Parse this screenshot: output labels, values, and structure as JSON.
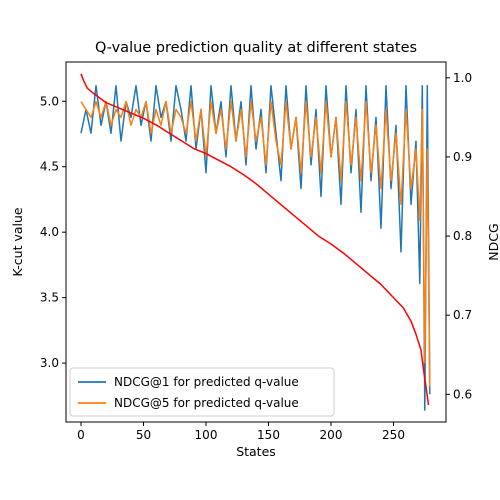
{
  "chart_data": {
    "type": "line",
    "title": "Q-value prediction quality at different states",
    "xlabel": "States",
    "ylabel_left": "K-cut value",
    "ylabel_right": "NDCG",
    "xlim": [
      -12,
      292
    ],
    "ylim_left": [
      2.55,
      5.3
    ],
    "ylim_right": [
      0.565,
      1.02
    ],
    "x_ticks": [
      0,
      50,
      100,
      150,
      200,
      250
    ],
    "y_left_ticks": [
      3.0,
      3.5,
      4.0,
      4.5,
      5.0
    ],
    "y_right_ticks": [
      0.6,
      0.7,
      0.8,
      0.9,
      1.0
    ],
    "grid": false,
    "legend_location": "lower-left",
    "n_states": 279,
    "series": [
      {
        "name": "NDCG@1 for predicted q-value",
        "color": "#1f77b4",
        "axis": "right",
        "points": [
          [
            0,
            0.93
          ],
          [
            4,
            0.96
          ],
          [
            8,
            0.93
          ],
          [
            12,
            0.99
          ],
          [
            16,
            0.94
          ],
          [
            20,
            0.97
          ],
          [
            24,
            0.93
          ],
          [
            28,
            0.99
          ],
          [
            32,
            0.92
          ],
          [
            36,
            0.97
          ],
          [
            40,
            0.95
          ],
          [
            44,
            0.99
          ],
          [
            48,
            0.94
          ],
          [
            52,
            0.97
          ],
          [
            56,
            0.92
          ],
          [
            60,
            0.99
          ],
          [
            64,
            0.95
          ],
          [
            68,
            0.97
          ],
          [
            72,
            0.92
          ],
          [
            76,
            0.99
          ],
          [
            80,
            0.96
          ],
          [
            84,
            0.92
          ],
          [
            88,
            0.99
          ],
          [
            92,
            0.91
          ],
          [
            96,
            0.96
          ],
          [
            100,
            0.88
          ],
          [
            104,
            0.99
          ],
          [
            108,
            0.93
          ],
          [
            112,
            0.97
          ],
          [
            116,
            0.9
          ],
          [
            120,
            0.99
          ],
          [
            124,
            0.92
          ],
          [
            128,
            0.97
          ],
          [
            132,
            0.89
          ],
          [
            136,
            0.99
          ],
          [
            140,
            0.91
          ],
          [
            144,
            0.96
          ],
          [
            148,
            0.88
          ],
          [
            152,
            0.99
          ],
          [
            156,
            0.93
          ],
          [
            160,
            0.87
          ],
          [
            164,
            0.99
          ],
          [
            168,
            0.91
          ],
          [
            172,
            0.95
          ],
          [
            176,
            0.86
          ],
          [
            180,
            0.99
          ],
          [
            184,
            0.89
          ],
          [
            188,
            0.96
          ],
          [
            192,
            0.85
          ],
          [
            196,
            0.99
          ],
          [
            200,
            0.9
          ],
          [
            204,
            0.95
          ],
          [
            208,
            0.84
          ],
          [
            212,
            0.99
          ],
          [
            216,
            0.88
          ],
          [
            220,
            0.96
          ],
          [
            224,
            0.83
          ],
          [
            228,
            0.99
          ],
          [
            232,
            0.87
          ],
          [
            236,
            0.95
          ],
          [
            240,
            0.81
          ],
          [
            244,
            0.99
          ],
          [
            248,
            0.86
          ],
          [
            252,
            0.94
          ],
          [
            256,
            0.78
          ],
          [
            260,
            0.99
          ],
          [
            264,
            0.84
          ],
          [
            268,
            0.92
          ],
          [
            271,
            0.74
          ],
          [
            273,
            0.99
          ],
          [
            275,
            0.58
          ],
          [
            277,
            0.99
          ],
          [
            279,
            0.6
          ]
        ]
      },
      {
        "name": "NDCG@5 for predicted q-value",
        "color": "#ff7f0e",
        "axis": "right",
        "points": [
          [
            0,
            0.97
          ],
          [
            4,
            0.96
          ],
          [
            8,
            0.95
          ],
          [
            12,
            0.97
          ],
          [
            16,
            0.95
          ],
          [
            20,
            0.97
          ],
          [
            24,
            0.94
          ],
          [
            28,
            0.96
          ],
          [
            32,
            0.95
          ],
          [
            36,
            0.97
          ],
          [
            40,
            0.94
          ],
          [
            44,
            0.96
          ],
          [
            48,
            0.95
          ],
          [
            52,
            0.97
          ],
          [
            56,
            0.93
          ],
          [
            60,
            0.96
          ],
          [
            64,
            0.94
          ],
          [
            68,
            0.97
          ],
          [
            72,
            0.93
          ],
          [
            76,
            0.96
          ],
          [
            80,
            0.95
          ],
          [
            84,
            0.93
          ],
          [
            88,
            0.97
          ],
          [
            92,
            0.92
          ],
          [
            96,
            0.96
          ],
          [
            100,
            0.9
          ],
          [
            104,
            0.97
          ],
          [
            108,
            0.93
          ],
          [
            112,
            0.96
          ],
          [
            116,
            0.91
          ],
          [
            120,
            0.97
          ],
          [
            124,
            0.92
          ],
          [
            128,
            0.96
          ],
          [
            132,
            0.9
          ],
          [
            136,
            0.97
          ],
          [
            140,
            0.92
          ],
          [
            144,
            0.95
          ],
          [
            148,
            0.89
          ],
          [
            152,
            0.97
          ],
          [
            156,
            0.92
          ],
          [
            160,
            0.89
          ],
          [
            164,
            0.97
          ],
          [
            168,
            0.91
          ],
          [
            172,
            0.95
          ],
          [
            176,
            0.88
          ],
          [
            180,
            0.97
          ],
          [
            184,
            0.9
          ],
          [
            188,
            0.95
          ],
          [
            192,
            0.88
          ],
          [
            196,
            0.97
          ],
          [
            200,
            0.9
          ],
          [
            204,
            0.95
          ],
          [
            208,
            0.87
          ],
          [
            212,
            0.97
          ],
          [
            216,
            0.89
          ],
          [
            220,
            0.95
          ],
          [
            224,
            0.87
          ],
          [
            228,
            0.97
          ],
          [
            232,
            0.88
          ],
          [
            236,
            0.94
          ],
          [
            240,
            0.86
          ],
          [
            244,
            0.96
          ],
          [
            248,
            0.87
          ],
          [
            252,
            0.93
          ],
          [
            256,
            0.84
          ],
          [
            260,
            0.96
          ],
          [
            264,
            0.86
          ],
          [
            268,
            0.91
          ],
          [
            271,
            0.82
          ],
          [
            273,
            0.96
          ],
          [
            275,
            0.64
          ],
          [
            277,
            0.91
          ],
          [
            279,
            0.61
          ]
        ]
      },
      {
        "name": "",
        "color": "#ff0000",
        "axis": "left",
        "points": [
          [
            0,
            5.21
          ],
          [
            2,
            5.16
          ],
          [
            5,
            5.1
          ],
          [
            10,
            5.06
          ],
          [
            20,
            4.99
          ],
          [
            30,
            4.95
          ],
          [
            40,
            4.91
          ],
          [
            50,
            4.87
          ],
          [
            60,
            4.82
          ],
          [
            70,
            4.76
          ],
          [
            80,
            4.7
          ],
          [
            90,
            4.64
          ],
          [
            100,
            4.6
          ],
          [
            110,
            4.55
          ],
          [
            120,
            4.5
          ],
          [
            130,
            4.44
          ],
          [
            140,
            4.37
          ],
          [
            150,
            4.29
          ],
          [
            160,
            4.21
          ],
          [
            170,
            4.13
          ],
          [
            180,
            4.05
          ],
          [
            190,
            3.97
          ],
          [
            200,
            3.91
          ],
          [
            210,
            3.84
          ],
          [
            220,
            3.76
          ],
          [
            230,
            3.68
          ],
          [
            240,
            3.6
          ],
          [
            250,
            3.5
          ],
          [
            258,
            3.42
          ],
          [
            264,
            3.32
          ],
          [
            268,
            3.22
          ],
          [
            272,
            3.1
          ],
          [
            274,
            2.95
          ],
          [
            276,
            2.82
          ],
          [
            278,
            2.68
          ]
        ]
      }
    ],
    "legend": [
      {
        "label": "NDCG@1 for predicted q-value",
        "color": "#1f77b4"
      },
      {
        "label": "NDCG@5 for predicted q-value",
        "color": "#ff7f0e"
      }
    ]
  }
}
